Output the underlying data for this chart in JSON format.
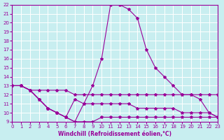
{
  "xlabel": "Windchill (Refroidissement éolien,°C)",
  "ylabel": "",
  "xlim": [
    0,
    23
  ],
  "ylim": [
    9,
    22
  ],
  "yticks": [
    9,
    10,
    11,
    12,
    13,
    14,
    15,
    16,
    17,
    18,
    19,
    20,
    21,
    22
  ],
  "xticks": [
    0,
    1,
    2,
    3,
    4,
    5,
    6,
    7,
    8,
    9,
    10,
    11,
    12,
    13,
    14,
    15,
    16,
    17,
    18,
    19,
    20,
    21,
    22,
    23
  ],
  "bg_color": "#c8eef0",
  "line_color": "#990099",
  "grid_color": "#ffffff",
  "line1_x": [
    0,
    1,
    2,
    3,
    4,
    5,
    6,
    7,
    8,
    9,
    10,
    11,
    12,
    13,
    14,
    15,
    16,
    17,
    18,
    19,
    20,
    21,
    22,
    23
  ],
  "line1_y": [
    13,
    13,
    12.5,
    11.5,
    10.5,
    10,
    9.5,
    9,
    11,
    13,
    16,
    22,
    22,
    21.5,
    20.5,
    17,
    15,
    14,
    13,
    12,
    12,
    11.5,
    10,
    9.5
  ],
  "line2_x": [
    0,
    1,
    2,
    3,
    4,
    5,
    6,
    7,
    8,
    9,
    10,
    11,
    12,
    13,
    14,
    15,
    16,
    17,
    18,
    19,
    20,
    21,
    22,
    23
  ],
  "line2_y": [
    13,
    13,
    12.5,
    12.5,
    12.5,
    12.5,
    12.5,
    12,
    12,
    12,
    12,
    12,
    12,
    12,
    12,
    12,
    12,
    12,
    12,
    12,
    12,
    12,
    12,
    12
  ],
  "line3_x": [
    0,
    1,
    2,
    3,
    4,
    5,
    6,
    7,
    8,
    9,
    10,
    11,
    12,
    13,
    14,
    15,
    16,
    17,
    18,
    19,
    20,
    21,
    22,
    23
  ],
  "line3_y": [
    13,
    13,
    12.5,
    11.5,
    10.5,
    10,
    9.5,
    11.5,
    11,
    11,
    11,
    11,
    11,
    11,
    10.5,
    10.5,
    10.5,
    10.5,
    10.5,
    10,
    10,
    10,
    10,
    9.5
  ],
  "line4_x": [
    0,
    1,
    2,
    3,
    4,
    5,
    6,
    7,
    8,
    9,
    10,
    11,
    12,
    13,
    14,
    15,
    16,
    17,
    18,
    19,
    20,
    21,
    22,
    23
  ],
  "line4_y": [
    13,
    13,
    12.5,
    11.5,
    10.5,
    10,
    9.5,
    9,
    9,
    9,
    9.5,
    9.5,
    9.5,
    9.5,
    9.5,
    9.5,
    9.5,
    9.5,
    9.5,
    9.5,
    9.5,
    9.5,
    9.5,
    9.5
  ]
}
